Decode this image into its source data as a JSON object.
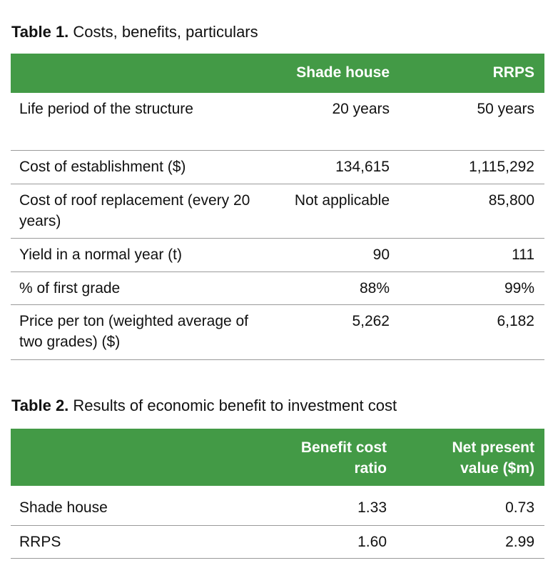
{
  "table1": {
    "title_bold": "Table 1.",
    "title_rest": " Costs, benefits, particulars",
    "headers": [
      "",
      "Shade house",
      "RRPS"
    ],
    "rows": [
      [
        "Life period of the structure",
        "20 years",
        "50 years"
      ],
      [
        "Cost of establishment ($)",
        "134,615",
        "1,115,292"
      ],
      [
        "Cost of roof replacement (every 20 years)",
        "Not applicable",
        "85,800"
      ],
      [
        "Yield in a normal year (t)",
        "90",
        "111"
      ],
      [
        "% of first grade",
        "88%",
        "99%"
      ],
      [
        "Price per ton (weighted average of two grades) ($)",
        "5,262",
        "6,182"
      ]
    ]
  },
  "table2": {
    "title_bold": "Table 2.",
    "title_rest": " Results of economic benefit to investment cost",
    "headers": [
      "",
      "Benefit cost ratio",
      "Net present value ($m)"
    ],
    "rows": [
      [
        "Shade house",
        "1.33",
        "0.73"
      ],
      [
        "RRPS",
        "1.60",
        "2.99"
      ]
    ]
  },
  "colors": {
    "header_green": "#439a46"
  }
}
